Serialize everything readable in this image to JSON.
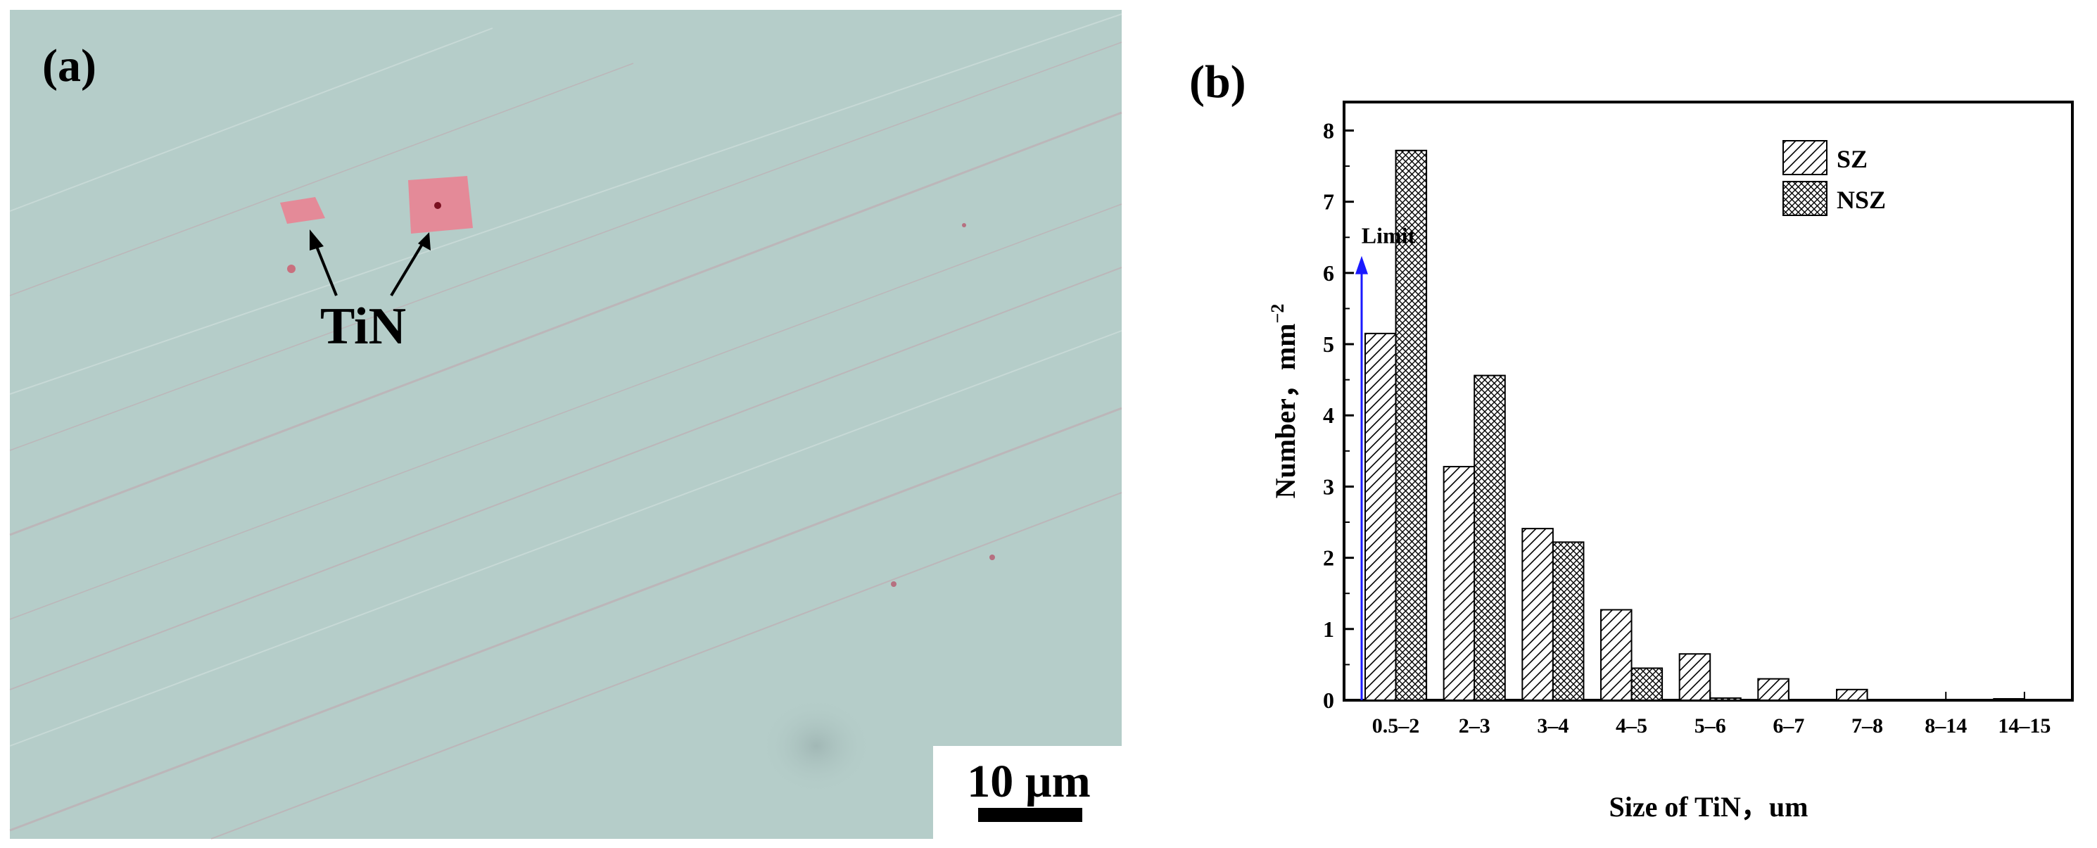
{
  "panel_a": {
    "label": "(a)",
    "annotation": "TiN",
    "scale_bar": "10 µm",
    "background_color": "#b5cdc9",
    "particle_color": "#e48a98"
  },
  "panel_b": {
    "label": "(b)"
  },
  "chart_data": {
    "type": "bar",
    "title": "",
    "xlabel": "Size of TiN，um",
    "ylabel": "Number，mm",
    "ylabel_superscript": "−2",
    "categories": [
      "0.5–2",
      "2–3",
      "3–4",
      "4–5",
      "5–6",
      "6–7",
      "7–8",
      "8–14",
      "14–15"
    ],
    "series": [
      {
        "name": "SZ",
        "pattern": "diagonal-hatch",
        "values": [
          5.15,
          3.28,
          2.41,
          1.27,
          0.65,
          0.3,
          0.15,
          0,
          0.02
        ]
      },
      {
        "name": "NSZ",
        "pattern": "crosshatch",
        "values": [
          7.72,
          4.56,
          2.22,
          0.45,
          0.03,
          0,
          0,
          0,
          0
        ]
      }
    ],
    "ylim": [
      0,
      8.4
    ],
    "yticks": [
      0,
      1,
      2,
      3,
      4,
      5,
      6,
      7,
      8
    ],
    "grid": false,
    "legend_position": "top-right",
    "annotation": {
      "text": "Limit",
      "at_y": 6.2,
      "color": "#1a1aff"
    }
  }
}
